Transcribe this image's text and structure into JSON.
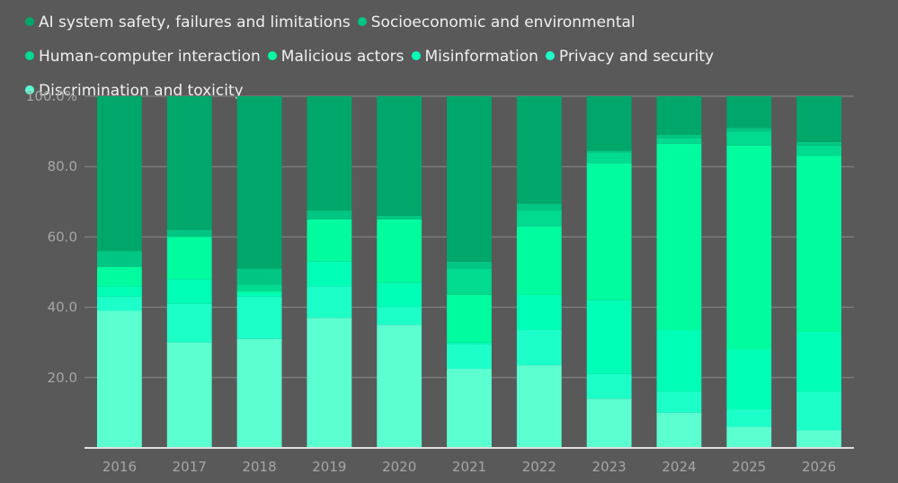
{
  "chart_data": {
    "type": "bar",
    "stacked": true,
    "title": "",
    "xlabel": "",
    "ylabel": "",
    "ylim": [
      0,
      100
    ],
    "yticks": [
      "20.0",
      "40.0",
      "60.0",
      "80.0",
      "100.0%"
    ],
    "yticks_values": [
      20,
      40,
      60,
      80,
      100
    ],
    "grid": true,
    "legend_position": "top",
    "categories": [
      "2016",
      "2017",
      "2018",
      "2019",
      "2020",
      "2021",
      "2022",
      "2023",
      "2024",
      "2025",
      "2026"
    ],
    "series": [
      {
        "name": "Discrimination and toxicity",
        "color": "#5bffd0",
        "values": [
          39,
          30,
          31,
          37,
          35,
          22.5,
          23.5,
          14,
          10,
          6,
          5
        ]
      },
      {
        "name": "Privacy and security",
        "color": "#1dffc8",
        "values": [
          4,
          11,
          12,
          9,
          5,
          7,
          10,
          7,
          6,
          5,
          11
        ]
      },
      {
        "name": "Misinformation",
        "color": "#00ffb6",
        "values": [
          3,
          7,
          1,
          7,
          7,
          0.5,
          10,
          21,
          17.5,
          17,
          17
        ]
      },
      {
        "name": "Malicious actors",
        "color": "#00fc9e",
        "values": [
          5.5,
          12,
          0.5,
          12,
          18,
          13.5,
          19.5,
          39,
          53,
          58,
          50
        ]
      },
      {
        "name": "Human-computer interaction",
        "color": "#00db8f",
        "values": [
          0,
          0,
          2,
          0,
          0,
          7.5,
          4.5,
          3,
          1.5,
          4,
          3
        ]
      },
      {
        "name": "Socioeconomic and environmental",
        "color": "#00c683",
        "values": [
          4.5,
          2,
          4.5,
          2.5,
          1,
          2,
          2,
          0.5,
          1,
          1,
          1
        ]
      },
      {
        "name": "AI system safety, failures and limitations",
        "color": "#00a76a",
        "values": [
          44,
          38,
          49,
          32.5,
          34,
          47,
          30.5,
          15.5,
          11,
          9,
          13
        ]
      }
    ]
  },
  "legend": {
    "order": [
      6,
      5,
      4,
      3,
      2,
      1,
      0
    ]
  },
  "colors": {
    "background": "#595959",
    "gridline": "#8a8a8a",
    "axis": "#e0e0e0",
    "tick_text": "#a6a6a6"
  }
}
